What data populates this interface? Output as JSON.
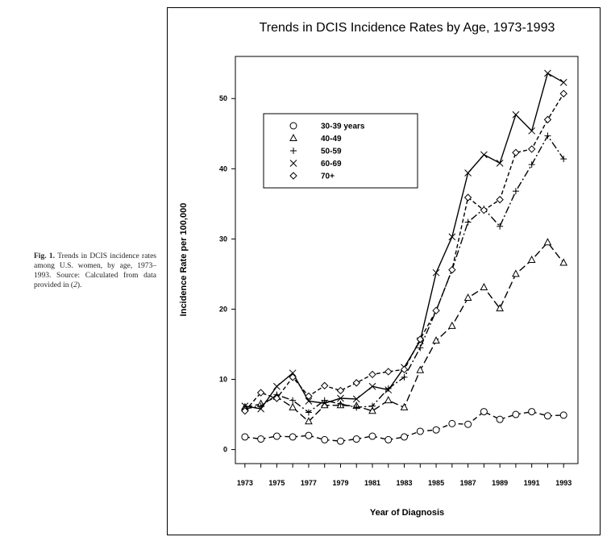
{
  "caption": {
    "label": "Fig. 1.",
    "text_before": " Trends in DCIS incidence rates among U.S. women, by age, 1973–1993. Source: Calculated from data provided in (",
    "ref": "2",
    "text_after": ")."
  },
  "chart_data": {
    "type": "line",
    "title": "Trends in DCIS Incidence Rates by Age, 1973-1993",
    "xlabel": "Year of Diagnosis",
    "ylabel": "Incidence Rate per 100,000",
    "xlim": [
      1972.4,
      1993.9
    ],
    "ylim": [
      -2,
      56
    ],
    "x_ticks": [
      1973,
      1974,
      1975,
      1976,
      1977,
      1978,
      1979,
      1980,
      1981,
      1982,
      1983,
      1984,
      1985,
      1986,
      1987,
      1988,
      1989,
      1990,
      1991,
      1992,
      1993
    ],
    "x_tick_labels": [
      "1973",
      "1975",
      "1977",
      "1979",
      "1981",
      "1983",
      "1985",
      "1987",
      "1989",
      "1991",
      "1993"
    ],
    "y_ticks": [
      0,
      10,
      20,
      30,
      40,
      50
    ],
    "y_tick_labels": [
      "0",
      "10",
      "20",
      "30",
      "40",
      "50"
    ],
    "legend_position": "top-left",
    "x": [
      1973,
      1974,
      1975,
      1976,
      1977,
      1978,
      1979,
      1980,
      1981,
      1982,
      1983,
      1984,
      1985,
      1986,
      1987,
      1988,
      1989,
      1990,
      1991,
      1992,
      1993
    ],
    "series": [
      {
        "name": "30-39 years",
        "marker": "circle",
        "dash": "6,4",
        "values": [
          1.8,
          1.5,
          1.9,
          1.8,
          2.0,
          1.4,
          1.2,
          1.5,
          1.9,
          1.4,
          1.8,
          2.6,
          2.8,
          3.7,
          3.6,
          5.4,
          4.3,
          5.0,
          5.4,
          4.8,
          4.9
        ]
      },
      {
        "name": "40-49",
        "marker": "triangle",
        "dash": "9,4",
        "values": [
          6.0,
          6.5,
          7.5,
          6.0,
          4.0,
          6.3,
          6.3,
          6.2,
          5.5,
          7.0,
          6.0,
          11.3,
          15.5,
          17.6,
          21.6,
          23.1,
          20.1,
          25.0,
          27.0,
          29.5,
          26.6
        ]
      },
      {
        "name": "50-59",
        "marker": "plus",
        "dash": "9,3,2,3",
        "values": [
          5.8,
          6.2,
          7.8,
          7.0,
          5.3,
          7.0,
          6.5,
          6.0,
          6.2,
          8.7,
          10.3,
          14.5,
          19.8,
          25.6,
          32.4,
          34.3,
          31.8,
          36.8,
          40.6,
          44.7,
          41.4
        ]
      },
      {
        "name": "60-69",
        "marker": "x",
        "dash": "",
        "values": [
          6.2,
          5.8,
          9.0,
          10.9,
          6.9,
          6.6,
          7.3,
          7.2,
          9.0,
          8.5,
          11.7,
          15.5,
          25.2,
          30.3,
          39.4,
          42.0,
          40.8,
          47.7,
          45.4,
          53.6,
          52.3
        ]
      },
      {
        "name": "70+",
        "marker": "diamond",
        "dash": "5,3",
        "values": [
          5.5,
          8.1,
          7.3,
          10.3,
          7.6,
          9.1,
          8.4,
          9.5,
          10.7,
          11.1,
          11.4,
          15.7,
          19.8,
          25.6,
          35.9,
          34.1,
          35.6,
          42.3,
          42.8,
          47.0,
          50.7
        ]
      }
    ]
  }
}
